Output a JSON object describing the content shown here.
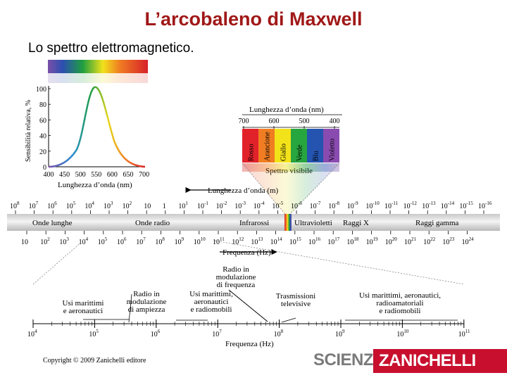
{
  "header": {
    "title": "L’arcobaleno di Maxwell",
    "subtitle": "Lo spettro elettromagnetico."
  },
  "sensitivity_chart": {
    "ylabel": "Sensibilità relativa, %",
    "xlabel": "Lunghezza d’onda (nm)",
    "y_ticks": [
      "100",
      "80",
      "60",
      "40",
      "20",
      "0"
    ],
    "x_ticks": [
      "400",
      "450",
      "500",
      "550",
      "600",
      "650",
      "700"
    ]
  },
  "visible_box": {
    "title": "Lunghezza d’onda (nm)",
    "ticks": [
      "700",
      "600",
      "500",
      "400"
    ],
    "bands": [
      "Rosso",
      "Arancione",
      "Giallo",
      "Verde",
      "Blu",
      "Violetto"
    ],
    "band_colors": [
      "#e2222a",
      "#f07d22",
      "#f2e21a",
      "#27a53e",
      "#2454b0",
      "#8a4bb0"
    ],
    "label": "Spettro visibile"
  },
  "main_spectrum": {
    "wavelength_label": "Lunghezza d’onda (m)",
    "frequency_label": "Frequenza (Hz)",
    "wavelength_exponents": [
      "8",
      "7",
      "6",
      "5",
      "4",
      "3",
      "2",
      "",
      "",
      "1",
      "-1",
      "-2",
      "-3",
      "-4",
      "-5",
      "-6",
      "-7",
      "-8",
      "-9",
      "-10",
      "-11",
      "-12",
      "-13",
      "-14",
      "-15",
      "-16"
    ],
    "frequency_exponents": [
      "",
      "2",
      "3",
      "4",
      "5",
      "6",
      "7",
      "8",
      "9",
      "10",
      "11",
      "12",
      "13",
      "14",
      "15",
      "16",
      "17",
      "18",
      "19",
      "20",
      "21",
      "22",
      "23",
      "24"
    ],
    "bands": [
      "Onde lunghe",
      "Onde radio",
      "Infrarossi",
      "Ultravioletti",
      "Raggi X",
      "Raggi gamma"
    ]
  },
  "radio_detail": {
    "ticks": [
      "4",
      "5",
      "6",
      "7",
      "8",
      "9",
      "10",
      "11"
    ],
    "xlabel": "Frequenza (Hz)",
    "labels": {
      "marittimi1": [
        "Usi marittimi",
        "e aeronautici"
      ],
      "am": [
        "Radio in",
        "modulazione",
        "di ampiezza"
      ],
      "marittimi2": [
        "Usi marittimi,",
        "aeronautici",
        "e radiomobili"
      ],
      "fm": [
        "Radio in",
        "modulazione",
        "di frequenza"
      ],
      "tv": [
        "Trasmissioni",
        "televisive"
      ],
      "marittimi3": [
        "Usi marittimi, aeronautici,",
        "radioamatoriali",
        "e radiomobili"
      ]
    }
  },
  "footer": {
    "copyright": "Copyright © 2009 Zanichelli editore",
    "brand_scienze": "SCIENZE",
    "brand_zanichelli": "ZANICHELLI"
  }
}
